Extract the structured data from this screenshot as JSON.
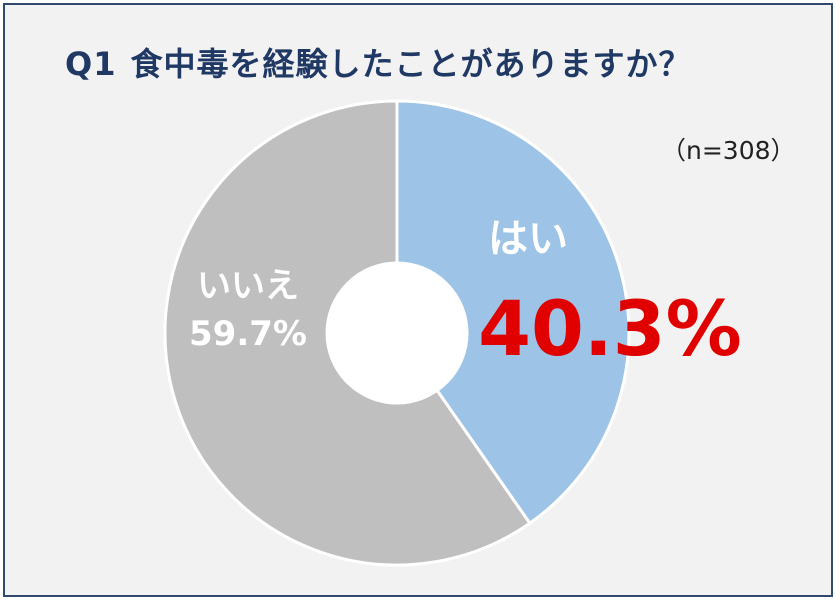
{
  "title": {
    "number": "Q1",
    "text": "食中毒を経験したことがありますか？"
  },
  "sample_note": "（n=308）",
  "colors": {
    "frame_bg": "#f2f2f2",
    "frame_border": "#2f4a6e",
    "title": "#1f3864",
    "yes_slice": "#9dc3e6",
    "no_slice": "#bfbfbf",
    "yes_pct": "#e00000",
    "label_text": "#ffffff"
  },
  "chart_data": {
    "type": "pie",
    "variant": "donut",
    "title": "食中毒を経験したことがありますか？",
    "slices": [
      {
        "label": "はい",
        "value": 40.3,
        "display": "40.3%"
      },
      {
        "label": "いいえ",
        "value": 59.7,
        "display": "59.7%"
      }
    ]
  }
}
